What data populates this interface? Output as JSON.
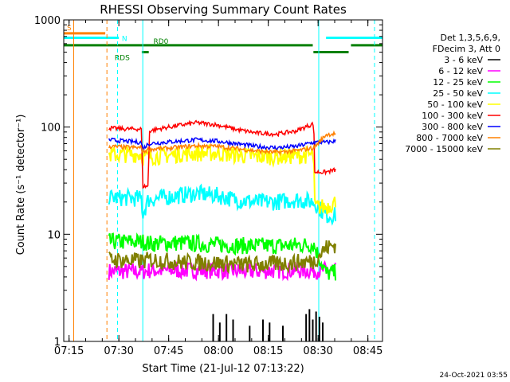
{
  "chart_data": {
    "type": "line",
    "title": "RHESSI Observing Summary Count Rates",
    "xlabel": "Start Time (21-Jul-12 07:13:22)",
    "ylabel": "Count Rate (s⁻¹ detector⁻¹)",
    "y_scale": "log",
    "ylim": [
      1,
      1000
    ],
    "xlim_minutes": [
      0,
      96
    ],
    "x_ticks": [
      {
        "label": "07:15",
        "minute": 1.6
      },
      {
        "label": "07:30",
        "minute": 16.6
      },
      {
        "label": "07:45",
        "minute": 31.6
      },
      {
        "label": "08:00",
        "minute": 46.6
      },
      {
        "label": "08:15",
        "minute": 61.6
      },
      {
        "label": "08:30",
        "minute": 76.6
      },
      {
        "label": "08:45",
        "minute": 91.6
      }
    ],
    "y_ticks": [
      {
        "label": "1",
        "value": 1
      },
      {
        "label": "10",
        "value": 10
      },
      {
        "label": "100",
        "value": 100
      },
      {
        "label": "1000",
        "value": 1000
      }
    ],
    "legend_header": [
      "Det 1,3,5,6,9,",
      "FDecim 3, Att 0"
    ],
    "legend_position": "right",
    "footer_date": "24-Oct-2021 03:55",
    "flags": [
      {
        "label": "S",
        "color": "#ff8000",
        "y_value": 750,
        "start": 0,
        "end": 12.5
      },
      {
        "label": "N",
        "color": "#00ffff",
        "y_value": 680,
        "start": 0,
        "end": 16.6
      },
      {
        "label": "N",
        "color": "#00ffff",
        "y_value": 680,
        "start": 79,
        "end": 96
      },
      {
        "label": "RD0",
        "color": "#008000",
        "y_value": 580,
        "start": 0,
        "end": 75
      },
      {
        "label": "",
        "color": "#008000",
        "y_value": 580,
        "start": 86.5,
        "end": 96
      },
      {
        "label": "RDS",
        "color": "#008000",
        "y_value": 500,
        "start": 23.5,
        "end": 25.6
      },
      {
        "label": "",
        "color": "#008000",
        "y_value": 500,
        "start": 75.2,
        "end": 85.8
      }
    ],
    "vertical_lines": [
      {
        "minute": 3.0,
        "color": "#ff8000",
        "style": "solid"
      },
      {
        "minute": 13.0,
        "color": "#ff8000",
        "style": "dashed"
      },
      {
        "minute": 16.2,
        "color": "#00ffff",
        "style": "dashed"
      },
      {
        "minute": 23.8,
        "color": "#00ffff",
        "style": "solid"
      },
      {
        "minute": 76.8,
        "color": "#00ffff",
        "style": "solid"
      },
      {
        "minute": 93.6,
        "color": "#00ffff",
        "style": "dashed"
      }
    ],
    "series": [
      {
        "name": "3 - 6 keV",
        "color": "#000000",
        "kind": "spikes",
        "x": [
          45,
          47,
          49,
          51,
          56,
          60,
          62,
          66,
          73,
          74,
          75,
          76,
          77,
          78
        ],
        "values": [
          1.8,
          1.5,
          1.8,
          1.6,
          1.4,
          1.6,
          1.5,
          1.4,
          1.8,
          2.0,
          1.6,
          1.9,
          1.7,
          1.5
        ]
      },
      {
        "name": "6 - 12 keV",
        "color": "#ff00ff",
        "kind": "noisy",
        "x": [
          13.6,
          24,
          26,
          35,
          45,
          55,
          65,
          75.3,
          79,
          82
        ],
        "values": [
          4.5,
          4.5,
          4.6,
          4.6,
          4.6,
          4.5,
          4.6,
          4.6,
          4.6,
          4.7
        ]
      },
      {
        "name": "12 - 25 keV",
        "color": "#00ff00",
        "kind": "noisy",
        "x": [
          13.6,
          24,
          26,
          35,
          45,
          55,
          65,
          75.3,
          79,
          82
        ],
        "values": [
          8.5,
          8.5,
          8.2,
          8.3,
          8.0,
          7.8,
          7.8,
          8.0,
          4.3,
          4.4
        ]
      },
      {
        "name": "25 - 50 keV",
        "color": "#00ffff",
        "kind": "noisy",
        "x": [
          13.6,
          23.5,
          23.7,
          25.5,
          30,
          35,
          40,
          46,
          52,
          58,
          64,
          70,
          75.3,
          79,
          82
        ],
        "values": [
          22,
          21.5,
          15,
          21,
          22,
          23,
          24,
          23,
          21,
          20,
          20,
          21,
          20,
          15,
          15
        ]
      },
      {
        "name": "50 - 100 keV",
        "color": "#ffff00",
        "kind": "noisy",
        "x": [
          13.6,
          23.5,
          23.7,
          25.5,
          30,
          35,
          40,
          46,
          52,
          58,
          64,
          70,
          75.3,
          75.5,
          79,
          82
        ],
        "values": [
          55,
          56,
          52,
          53,
          54,
          56,
          57,
          57,
          55,
          53,
          53,
          54,
          55,
          18,
          18,
          20
        ]
      },
      {
        "name": "100 - 300 keV",
        "color": "#ff0000",
        "kind": "line",
        "x": [
          13.6,
          18,
          23.5,
          23.7,
          25.5,
          25.7,
          30,
          35,
          40,
          46,
          52,
          58,
          64,
          70,
          75.3,
          75.5,
          79,
          82
        ],
        "values": [
          98,
          96,
          96,
          28,
          28,
          92,
          98,
          104,
          110,
          105,
          95,
          88,
          86,
          92,
          108,
          38,
          38,
          40
        ]
      },
      {
        "name": "300 - 800 keV",
        "color": "#0000ff",
        "kind": "line",
        "x": [
          13.6,
          18,
          23.5,
          23.7,
          25.5,
          30,
          35,
          40,
          46,
          52,
          58,
          64,
          70,
          75.3,
          79,
          82
        ],
        "values": [
          76,
          74,
          72,
          62,
          70,
          72,
          74,
          76,
          74,
          70,
          66,
          64,
          66,
          72,
          72,
          74
        ]
      },
      {
        "name": "800 - 7000 keV",
        "color": "#ff8000",
        "kind": "line",
        "x": [
          13.6,
          18,
          23.5,
          23.7,
          25.5,
          30,
          35,
          40,
          46,
          52,
          58,
          64,
          70,
          75.3,
          79,
          82
        ],
        "values": [
          66,
          65,
          64,
          58,
          62,
          63,
          65,
          67,
          66,
          63,
          60,
          58,
          60,
          64,
          85,
          87
        ]
      },
      {
        "name": "7000 - 15000 keV",
        "color": "#808000",
        "kind": "noisy",
        "x": [
          13.6,
          24,
          26,
          35,
          45,
          55,
          65,
          75.3,
          79,
          82
        ],
        "values": [
          5.8,
          5.6,
          5.8,
          5.5,
          5.4,
          5.2,
          5.3,
          5.6,
          7.5,
          8.0
        ]
      }
    ]
  }
}
